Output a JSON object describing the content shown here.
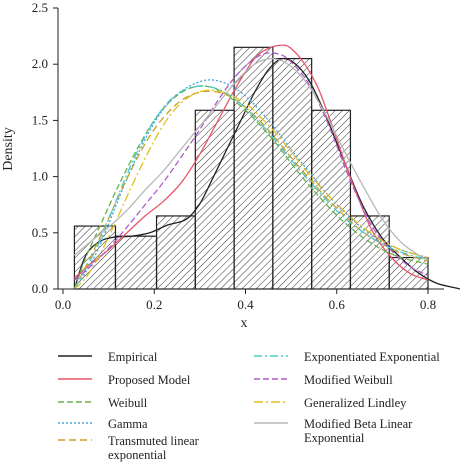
{
  "chart_data": {
    "type": "histogram",
    "xlabel": "x",
    "ylabel": "Density",
    "xlim": [
      0.0,
      0.87
    ],
    "ylim": [
      0.0,
      2.5
    ],
    "xticks": [
      "0.0",
      "0.2",
      "0.4",
      "0.6",
      "0.8"
    ],
    "xtick_values": [
      0.0,
      0.2,
      0.4,
      0.6,
      0.8
    ],
    "yticks": [
      "0.0",
      "0.5",
      "1.0",
      "1.5",
      "2.0",
      "2.5"
    ],
    "ytick_values": [
      0.0,
      0.5,
      1.0,
      1.5,
      2.0,
      2.5
    ],
    "grid": false,
    "legend_position": "bottom",
    "bins": [
      {
        "x0": 0.025,
        "x1": 0.115,
        "density": 0.56
      },
      {
        "x0": 0.115,
        "x1": 0.205,
        "density": 0.47
      },
      {
        "x0": 0.205,
        "x1": 0.29,
        "density": 0.65
      },
      {
        "x0": 0.29,
        "x1": 0.375,
        "density": 1.59
      },
      {
        "x0": 0.375,
        "x1": 0.46,
        "density": 2.15
      },
      {
        "x0": 0.46,
        "x1": 0.545,
        "density": 2.05
      },
      {
        "x0": 0.545,
        "x1": 0.63,
        "density": 1.59
      },
      {
        "x0": 0.63,
        "x1": 0.715,
        "density": 0.65
      },
      {
        "x0": 0.715,
        "x1": 0.8,
        "density": 0.28
      }
    ],
    "series": [
      {
        "name": "Empirical",
        "color": "#222222",
        "dash": "",
        "x": [
          0.025,
          0.05,
          0.08,
          0.11,
          0.15,
          0.19,
          0.23,
          0.27,
          0.3,
          0.33,
          0.36,
          0.39,
          0.42,
          0.45,
          0.48,
          0.51,
          0.54,
          0.57,
          0.6,
          0.63,
          0.66,
          0.7,
          0.74,
          0.78,
          0.82,
          0.86,
          0.87
        ],
        "y": [
          0.0,
          0.3,
          0.42,
          0.46,
          0.47,
          0.5,
          0.57,
          0.62,
          0.76,
          1.0,
          1.25,
          1.5,
          1.75,
          1.95,
          2.05,
          2.0,
          1.85,
          1.6,
          1.3,
          1.0,
          0.72,
          0.45,
          0.28,
          0.14,
          0.05,
          0.01,
          0.0
        ]
      },
      {
        "name": "Proposed Model",
        "color": "#e8556a",
        "dash": "",
        "x": [
          0.025,
          0.06,
          0.1,
          0.14,
          0.18,
          0.22,
          0.26,
          0.3,
          0.34,
          0.38,
          0.42,
          0.45,
          0.48,
          0.5,
          0.53,
          0.56,
          0.59,
          0.62,
          0.65,
          0.68,
          0.72,
          0.76,
          0.8
        ],
        "y": [
          0.1,
          0.22,
          0.35,
          0.5,
          0.65,
          0.78,
          0.95,
          1.2,
          1.5,
          1.8,
          2.05,
          2.14,
          2.17,
          2.14,
          2.0,
          1.78,
          1.45,
          1.1,
          0.78,
          0.5,
          0.28,
          0.14,
          0.08
        ]
      },
      {
        "name": "Weibull",
        "color": "#6ab04c",
        "dash": "6,3",
        "x": [
          0.025,
          0.05,
          0.08,
          0.11,
          0.14,
          0.17,
          0.2,
          0.23,
          0.26,
          0.29,
          0.32,
          0.35,
          0.38,
          0.41,
          0.44,
          0.47,
          0.5,
          0.54,
          0.58,
          0.62,
          0.66,
          0.7,
          0.74,
          0.78,
          0.8
        ],
        "y": [
          0.0,
          0.28,
          0.55,
          0.82,
          1.07,
          1.3,
          1.5,
          1.65,
          1.75,
          1.8,
          1.8,
          1.75,
          1.66,
          1.55,
          1.42,
          1.28,
          1.12,
          0.92,
          0.74,
          0.58,
          0.45,
          0.35,
          0.28,
          0.24,
          0.22
        ]
      },
      {
        "name": "Gamma",
        "color": "#4aa3df",
        "dash": "2,2",
        "x": [
          0.025,
          0.05,
          0.08,
          0.11,
          0.14,
          0.17,
          0.2,
          0.23,
          0.26,
          0.29,
          0.32,
          0.35,
          0.38,
          0.41,
          0.44,
          0.47,
          0.5,
          0.54,
          0.58,
          0.62,
          0.66,
          0.7,
          0.74,
          0.78,
          0.8
        ],
        "y": [
          0.0,
          0.15,
          0.38,
          0.68,
          0.98,
          1.25,
          1.48,
          1.65,
          1.76,
          1.83,
          1.86,
          1.84,
          1.78,
          1.68,
          1.55,
          1.4,
          1.24,
          1.04,
          0.84,
          0.67,
          0.53,
          0.42,
          0.35,
          0.3,
          0.28
        ]
      },
      {
        "name": "Transmuted linear exponential",
        "color": "#c9a227",
        "dash": "7,4",
        "x": [
          0.025,
          0.05,
          0.08,
          0.11,
          0.14,
          0.17,
          0.2,
          0.23,
          0.26,
          0.29,
          0.32,
          0.35,
          0.38,
          0.41,
          0.44,
          0.47,
          0.5,
          0.54,
          0.58,
          0.62,
          0.66,
          0.7,
          0.74,
          0.78,
          0.8
        ],
        "y": [
          0.0,
          0.2,
          0.45,
          0.72,
          0.98,
          1.22,
          1.42,
          1.57,
          1.68,
          1.74,
          1.76,
          1.74,
          1.68,
          1.58,
          1.46,
          1.32,
          1.17,
          0.98,
          0.8,
          0.64,
          0.5,
          0.4,
          0.32,
          0.27,
          0.25
        ]
      },
      {
        "name": "Exponentiated Exponential",
        "color": "#4cc9c9",
        "dash": "8,3,2,3",
        "x": [
          0.025,
          0.05,
          0.08,
          0.11,
          0.14,
          0.17,
          0.2,
          0.23,
          0.26,
          0.29,
          0.32,
          0.35,
          0.38,
          0.41,
          0.44,
          0.47,
          0.5,
          0.54,
          0.58,
          0.62,
          0.66,
          0.7,
          0.74,
          0.78,
          0.8
        ],
        "y": [
          0.0,
          0.18,
          0.42,
          0.72,
          1.02,
          1.28,
          1.5,
          1.66,
          1.76,
          1.8,
          1.8,
          1.76,
          1.68,
          1.57,
          1.44,
          1.3,
          1.15,
          0.96,
          0.78,
          0.62,
          0.5,
          0.4,
          0.33,
          0.28,
          0.26
        ]
      },
      {
        "name": "Modified Weibull",
        "color": "#b05cc8",
        "dash": "6,3",
        "x": [
          0.025,
          0.06,
          0.1,
          0.14,
          0.18,
          0.22,
          0.26,
          0.3,
          0.34,
          0.38,
          0.42,
          0.45,
          0.48,
          0.5,
          0.53,
          0.56,
          0.59,
          0.62,
          0.65,
          0.68,
          0.72,
          0.76,
          0.8
        ],
        "y": [
          0.08,
          0.2,
          0.36,
          0.55,
          0.75,
          0.95,
          1.18,
          1.42,
          1.68,
          1.9,
          2.05,
          2.1,
          2.08,
          2.02,
          1.88,
          1.66,
          1.38,
          1.06,
          0.78,
          0.54,
          0.34,
          0.2,
          0.12
        ]
      },
      {
        "name": "Generalized Lindley",
        "color": "#e0c020",
        "dash": "9,3,2,3",
        "x": [
          0.025,
          0.05,
          0.08,
          0.11,
          0.14,
          0.17,
          0.2,
          0.23,
          0.26,
          0.29,
          0.32,
          0.35,
          0.38,
          0.41,
          0.44,
          0.47,
          0.5,
          0.54,
          0.58,
          0.62,
          0.66,
          0.7,
          0.74,
          0.78,
          0.8
        ],
        "y": [
          0.0,
          0.1,
          0.3,
          0.55,
          0.82,
          1.08,
          1.32,
          1.52,
          1.66,
          1.74,
          1.77,
          1.75,
          1.7,
          1.62,
          1.5,
          1.37,
          1.22,
          1.02,
          0.84,
          0.68,
          0.54,
          0.43,
          0.35,
          0.3,
          0.28
        ]
      },
      {
        "name": "Modified Beta Linear Exponential",
        "color": "#b8b8b8",
        "dash": "",
        "x": [
          0.025,
          0.06,
          0.1,
          0.14,
          0.18,
          0.22,
          0.26,
          0.3,
          0.34,
          0.38,
          0.42,
          0.46,
          0.5,
          0.54,
          0.58,
          0.62,
          0.66,
          0.7,
          0.74,
          0.78,
          0.8
        ],
        "y": [
          0.3,
          0.42,
          0.55,
          0.7,
          0.88,
          1.05,
          1.25,
          1.45,
          1.65,
          1.85,
          2.0,
          2.05,
          1.98,
          1.8,
          1.52,
          1.2,
          0.9,
          0.62,
          0.42,
          0.3,
          0.26
        ]
      }
    ]
  }
}
